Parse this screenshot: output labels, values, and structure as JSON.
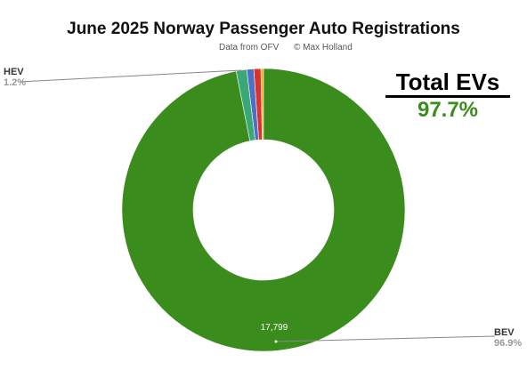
{
  "header": {
    "title": "June 2025 Norway Passenger Auto Registrations",
    "source": "Data from OFV",
    "credit": "© Max Holland"
  },
  "callout": {
    "label": "Total EVs",
    "value": "97.7%"
  },
  "labels": {
    "hev_name": "HEV",
    "hev_pct": "1.2%",
    "bev_name": "BEV",
    "bev_pct": "96.9%",
    "bev_count": "17,799"
  },
  "colors": {
    "bev": "#3a8d1c",
    "callout": "#3a8d1c"
  },
  "chart_data": {
    "type": "pie",
    "donut": true,
    "title": "June 2025 Norway Passenger Auto Registrations",
    "slices": [
      {
        "name": "BEV",
        "percent": 96.9,
        "value": 17799,
        "color": "#3a8d1c"
      },
      {
        "name": "HEV",
        "percent": 1.2,
        "color": "#3aa876"
      },
      {
        "name": "",
        "percent": 0.8,
        "color": "#4e6fc4"
      },
      {
        "name": "",
        "percent": 0.8,
        "color": "#d9342b"
      },
      {
        "name": "",
        "percent": 0.3,
        "color": "#f3a712"
      }
    ]
  }
}
